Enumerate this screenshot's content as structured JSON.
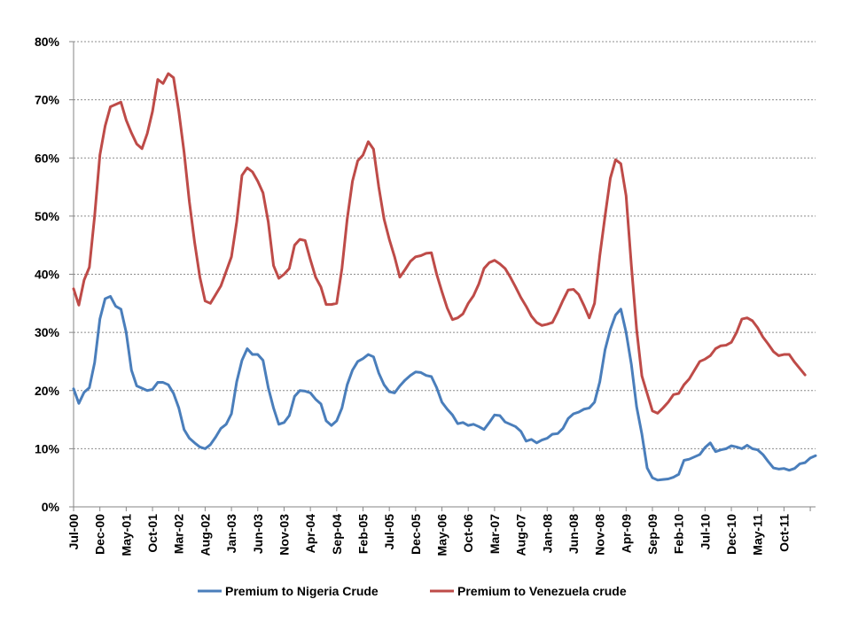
{
  "chart_data": {
    "type": "line",
    "title": "",
    "xlabel": "",
    "ylabel": "",
    "ylim": [
      0,
      0.8
    ],
    "y_ticks": [
      "0%",
      "10%",
      "20%",
      "30%",
      "40%",
      "50%",
      "60%",
      "70%",
      "80%"
    ],
    "x_tick_labels": [
      "Jul-00",
      "Dec-00",
      "May-01",
      "Oct-01",
      "Mar-02",
      "Aug-02",
      "Jan-03",
      "Jun-03",
      "Nov-03",
      "Apr-04",
      "Sep-04",
      "Feb-05",
      "Jul-05",
      "Dec-05",
      "May-06",
      "Oct-06",
      "Mar-07",
      "Aug-07",
      "Jan-08",
      "Jun-08",
      "Nov-08",
      "Apr-09",
      "Sep-09",
      "Feb-10",
      "Jul-10",
      "Dec-10",
      "May-11",
      "Oct-11"
    ],
    "x_start": "Jul-00",
    "x_end": "Mar-12",
    "grid": "horizontal dashed",
    "legend_position": "bottom",
    "series": [
      {
        "name": "Premium to Nigeria Crude",
        "color": "#4a7ebb",
        "values": [
          0.203,
          0.178,
          0.197,
          0.205,
          0.248,
          0.323,
          0.358,
          0.362,
          0.345,
          0.34,
          0.3,
          0.235,
          0.208,
          0.204,
          0.2,
          0.202,
          0.214,
          0.214,
          0.21,
          0.195,
          0.17,
          0.133,
          0.118,
          0.11,
          0.103,
          0.1,
          0.107,
          0.12,
          0.135,
          0.142,
          0.16,
          0.215,
          0.252,
          0.272,
          0.262,
          0.262,
          0.252,
          0.205,
          0.17,
          0.142,
          0.145,
          0.157,
          0.19,
          0.2,
          0.199,
          0.196,
          0.185,
          0.177,
          0.148,
          0.14,
          0.148,
          0.17,
          0.21,
          0.235,
          0.25,
          0.255,
          0.262,
          0.258,
          0.23,
          0.21,
          0.198,
          0.196,
          0.208,
          0.218,
          0.226,
          0.232,
          0.231,
          0.226,
          0.224,
          0.205,
          0.18,
          0.168,
          0.158,
          0.143,
          0.145,
          0.14,
          0.142,
          0.138,
          0.133,
          0.145,
          0.158,
          0.157,
          0.146,
          0.142,
          0.138,
          0.13,
          0.113,
          0.116,
          0.11,
          0.115,
          0.118,
          0.125,
          0.126,
          0.135,
          0.152,
          0.16,
          0.163,
          0.168,
          0.17,
          0.18,
          0.215,
          0.27,
          0.305,
          0.33,
          0.34,
          0.3,
          0.245,
          0.172,
          0.125,
          0.067,
          0.05,
          0.046,
          0.047,
          0.048,
          0.051,
          0.056,
          0.08,
          0.082,
          0.086,
          0.09,
          0.102,
          0.11,
          0.095,
          0.098,
          0.1,
          0.105,
          0.103,
          0.1,
          0.106,
          0.1,
          0.098,
          0.09,
          0.078,
          0.067,
          0.065,
          0.066,
          0.063,
          0.066,
          0.074,
          0.076,
          0.084,
          0.088
        ]
      },
      {
        "name": "Premium to Venezuela crude",
        "color": "#be4b48",
        "values": [
          0.375,
          0.347,
          0.39,
          0.412,
          0.5,
          0.605,
          0.655,
          0.688,
          0.692,
          0.696,
          0.665,
          0.643,
          0.624,
          0.616,
          0.642,
          0.68,
          0.735,
          0.728,
          0.745,
          0.738,
          0.68,
          0.61,
          0.525,
          0.455,
          0.395,
          0.354,
          0.35,
          0.365,
          0.38,
          0.405,
          0.43,
          0.49,
          0.57,
          0.583,
          0.576,
          0.56,
          0.54,
          0.49,
          0.415,
          0.393,
          0.4,
          0.41,
          0.45,
          0.46,
          0.458,
          0.425,
          0.395,
          0.378,
          0.348,
          0.348,
          0.35,
          0.41,
          0.495,
          0.56,
          0.595,
          0.605,
          0.628,
          0.615,
          0.55,
          0.495,
          0.46,
          0.43,
          0.395,
          0.408,
          0.422,
          0.43,
          0.432,
          0.436,
          0.437,
          0.4,
          0.37,
          0.342,
          0.322,
          0.325,
          0.332,
          0.35,
          0.363,
          0.383,
          0.41,
          0.42,
          0.424,
          0.418,
          0.41,
          0.395,
          0.378,
          0.36,
          0.345,
          0.328,
          0.317,
          0.312,
          0.314,
          0.317,
          0.335,
          0.355,
          0.373,
          0.374,
          0.365,
          0.346,
          0.325,
          0.35,
          0.432,
          0.5,
          0.565,
          0.597,
          0.59,
          0.535,
          0.415,
          0.305,
          0.225,
          0.195,
          0.165,
          0.161,
          0.17,
          0.18,
          0.193,
          0.195,
          0.21,
          0.22,
          0.235,
          0.25,
          0.254,
          0.26,
          0.272,
          0.277,
          0.278,
          0.283,
          0.3,
          0.323,
          0.325,
          0.32,
          0.308,
          0.292,
          0.28,
          0.267,
          0.26,
          0.262,
          0.262,
          0.249,
          0.238,
          0.227
        ]
      }
    ]
  }
}
